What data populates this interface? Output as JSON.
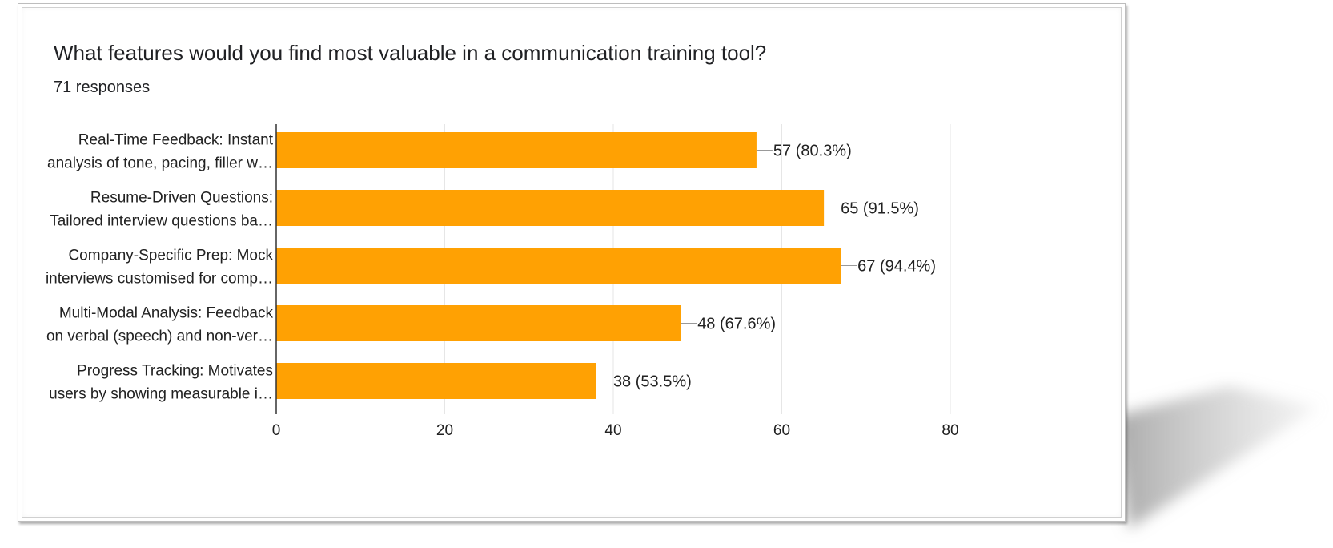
{
  "colors": {
    "bar": "#FFA103",
    "axis": "#333333",
    "grid": "#e6e6e6"
  },
  "chart_data": {
    "type": "bar",
    "orientation": "horizontal",
    "title": "What features would you find most valuable in a communication training tool?",
    "subtitle": "71 responses",
    "categories": [
      [
        "Real-Time Feedback: Instant",
        "analysis of tone, pacing, filler w…"
      ],
      [
        "Resume-Driven Questions:",
        "Tailored interview questions ba…"
      ],
      [
        "Company-Specific Prep: Mock",
        "interviews customised for comp…"
      ],
      [
        "Multi-Modal Analysis: Feedback",
        "on verbal (speech) and non-ver…"
      ],
      [
        "Progress Tracking: Motivates",
        "users by showing measurable i…"
      ]
    ],
    "values": [
      57,
      65,
      67,
      48,
      38
    ],
    "data_labels": [
      "57 (80.3%)",
      "65 (91.5%)",
      "67 (94.4%)",
      "48 (67.6%)",
      "38 (53.5%)"
    ],
    "xlim": [
      0,
      80
    ],
    "xticks": [
      0,
      20,
      40,
      60,
      80
    ],
    "grid": true
  }
}
